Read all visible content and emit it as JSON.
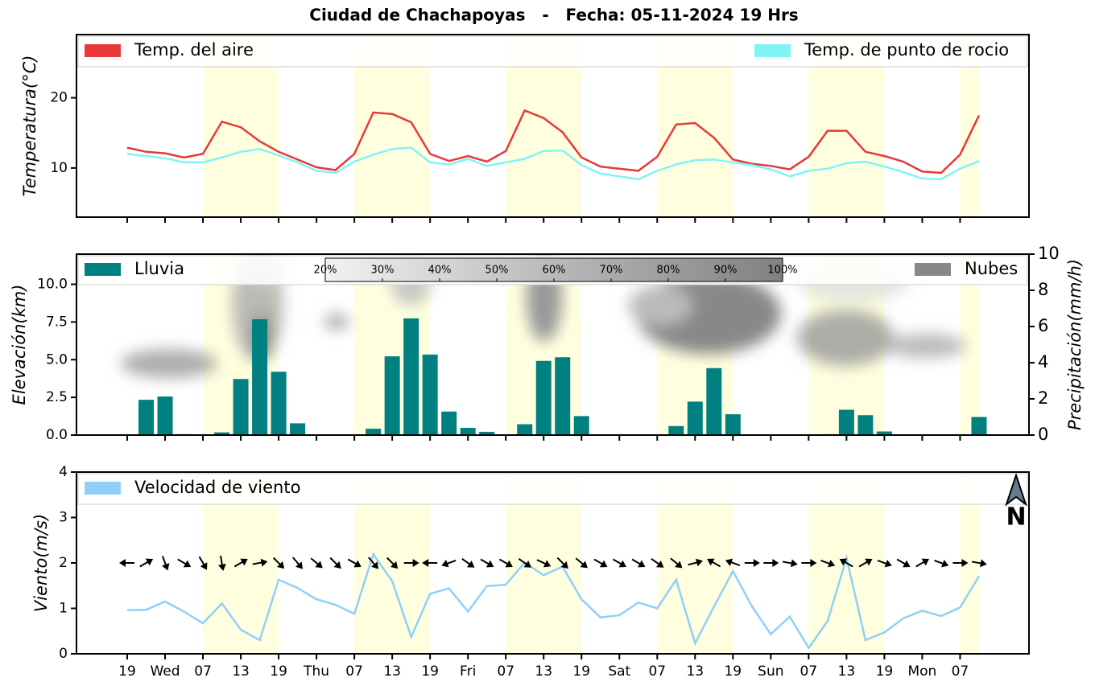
{
  "title": "Ciudad de Chachapoyas   -   Fecha: 05-11-2024 19 Hrs",
  "chart_data": [
    {
      "type": "line",
      "ylabel": "Temperatura(°C)",
      "ylim": [
        3,
        29
      ],
      "yticks": [
        10,
        20
      ],
      "series": [
        {
          "name": "Temp. del aire",
          "color": "#e8383a",
          "values": [
            12.9,
            12.3,
            12.1,
            11.5,
            12.0,
            16.6,
            15.8,
            13.8,
            12.3,
            11.2,
            10.1,
            9.7,
            12.0,
            17.9,
            17.7,
            16.5,
            12.0,
            11.0,
            11.7,
            10.9,
            12.4,
            18.2,
            17.1,
            15.1,
            11.5,
            10.2,
            9.9,
            9.6,
            11.6,
            16.2,
            16.4,
            14.3,
            11.2,
            10.6,
            10.3,
            9.8,
            11.6,
            15.3,
            15.3,
            12.3,
            11.7,
            10.9,
            9.5,
            9.3,
            11.9,
            17.5
          ]
        },
        {
          "name": "Temp. de punto de rocio",
          "color": "#80f4f4",
          "values": [
            12.0,
            11.7,
            11.4,
            10.8,
            10.8,
            11.5,
            12.3,
            12.7,
            11.8,
            10.8,
            9.6,
            9.3,
            10.9,
            11.9,
            12.7,
            12.9,
            10.8,
            10.5,
            11.3,
            10.3,
            10.8,
            11.3,
            12.4,
            12.5,
            10.4,
            9.2,
            8.8,
            8.4,
            9.6,
            10.5,
            11.1,
            11.2,
            10.8,
            10.4,
            9.8,
            8.8,
            9.6,
            9.9,
            10.7,
            10.9,
            10.2,
            9.4,
            8.5,
            8.4,
            9.9,
            11.0
          ]
        }
      ]
    },
    {
      "type": "bar",
      "ylabel": "Elevación(km)",
      "ylim": [
        0,
        12
      ],
      "yticks": [
        {
          "value": 0,
          "label": "0.0"
        },
        2.5,
        {
          "value": 5,
          "label": "5.0"
        },
        7.5,
        {
          "value": 10,
          "label": "10.0"
        }
      ],
      "y2label": "Precipitación(mm/h)",
      "y2lim": [
        0,
        10
      ],
      "y2ticks": [
        0,
        2,
        4,
        6,
        8,
        10
      ],
      "series": [
        {
          "name": "Lluvia",
          "color": "#008080",
          "axis": "y2",
          "values": [
            0,
            1.95,
            2.13,
            0.05,
            0,
            0.15,
            3.1,
            6.4,
            3.5,
            0.65,
            0,
            0,
            0,
            0.35,
            4.35,
            6.45,
            4.45,
            1.3,
            0.4,
            0.18,
            0.03,
            0.6,
            4.1,
            4.3,
            1.05,
            0,
            0,
            0,
            0,
            0.5,
            1.85,
            3.7,
            1.15,
            0.03,
            0,
            0,
            0,
            0.05,
            1.4,
            1.1,
            0.2,
            0,
            0,
            0,
            0,
            1.0
          ]
        }
      ],
      "cloud_legend": {
        "name": "Nubes",
        "color": "#888888"
      },
      "colorbar_ticks": [
        {
          "value": 20,
          "label": "20%"
        },
        {
          "value": 30,
          "label": "30%"
        },
        {
          "value": 40,
          "label": "40%"
        },
        {
          "value": 50,
          "label": "50%"
        },
        {
          "value": 60,
          "label": "60%"
        },
        {
          "value": 70,
          "label": "70%"
        },
        {
          "value": 80,
          "label": "80%"
        },
        {
          "value": 90,
          "label": "90%"
        },
        {
          "value": 100,
          "label": "100%"
        }
      ]
    },
    {
      "type": "line",
      "ylabel": "Viento(m/s)",
      "ylim": [
        0,
        4
      ],
      "yticks": [
        0,
        1,
        2,
        3,
        4
      ],
      "categories": [
        "19",
        null,
        "Wed",
        null,
        "07",
        null,
        "13",
        null,
        "19",
        null,
        "Thu",
        null,
        "07",
        null,
        "13",
        null,
        "19",
        null,
        "Fri",
        null,
        "07",
        null,
        "13",
        null,
        "19",
        null,
        "Sat",
        null,
        "07",
        null,
        "13",
        null,
        "19",
        null,
        "Sun",
        null,
        "07",
        null,
        "13",
        null,
        "19",
        null,
        "Mon",
        null,
        "07",
        null
      ],
      "series": [
        {
          "name": "Velocidad de viento",
          "color": "#90d0f8",
          "values": [
            0.96,
            0.97,
            1.15,
            0.93,
            0.67,
            1.11,
            0.53,
            0.3,
            1.63,
            1.45,
            1.2,
            1.08,
            0.88,
            2.19,
            1.6,
            0.37,
            1.32,
            1.44,
            0.93,
            1.49,
            1.52,
            2.01,
            1.73,
            1.92,
            1.2,
            0.8,
            0.85,
            1.13,
            1.0,
            1.63,
            0.23,
            1.04,
            1.82,
            1.05,
            0.43,
            0.82,
            0.13,
            0.72,
            2.11,
            0.3,
            0.47,
            0.78,
            0.95,
            0.83,
            1.02,
            1.71
          ]
        }
      ],
      "directions": [
        270,
        60,
        160,
        120,
        150,
        170,
        60,
        80,
        135,
        140,
        130,
        135,
        120,
        140,
        135,
        90,
        270,
        250,
        125,
        120,
        120,
        125,
        115,
        135,
        130,
        120,
        120,
        120,
        125,
        130,
        75,
        300,
        290,
        90,
        90,
        100,
        90,
        110,
        300,
        60,
        110,
        120,
        60,
        110,
        90,
        100
      ],
      "north_label": "N"
    }
  ]
}
